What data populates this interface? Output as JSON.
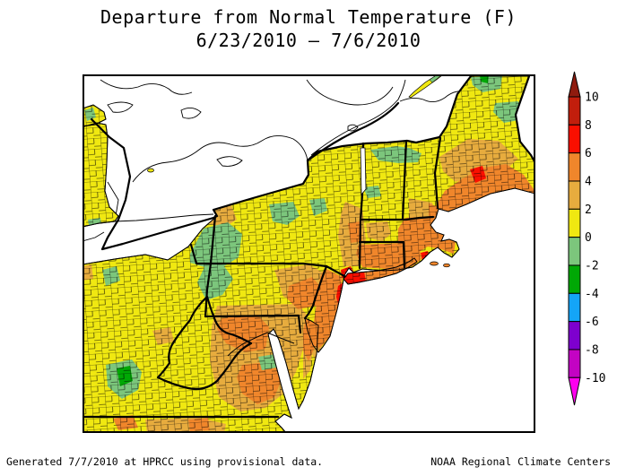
{
  "title": {
    "line1": "Departure from Normal Temperature (F)",
    "line2": "6/23/2010 – 7/6/2010"
  },
  "footer": {
    "left": "Generated 7/7/2010 at HPRCC using provisional data.",
    "right": "NOAA Regional Climate Centers"
  },
  "legend": {
    "labels": [
      "10",
      "8",
      "6",
      "4",
      "2",
      "0",
      "-2",
      "-4",
      "-6",
      "-8",
      "-10"
    ],
    "segment_palette_keys": [
      "8_to_10",
      "6_to_8",
      "4_to_6",
      "2_to_4",
      "0_to_2",
      "neg2_to_0",
      "neg4_to_neg2",
      "neg6_to_neg4",
      "neg8_to_neg6",
      "neg10_to_neg8"
    ],
    "arrow_top_key": "above_10",
    "arrow_bottom_key": "below_neg10"
  },
  "palette": {
    "above_10": "#8F1B0E",
    "8_to_10": "#C21E0C",
    "6_to_8": "#FA0F00",
    "4_to_6": "#F0862B",
    "2_to_4": "#E7AC3E",
    "0_to_2": "#F0E811",
    "neg2_to_0": "#7CC67C",
    "neg4_to_neg2": "#00A805",
    "neg6_to_neg4": "#14A5F7",
    "neg8_to_neg6": "#7E00CE",
    "neg10_to_neg8": "#C303C3",
    "below_neg10": "#FF00EE",
    "outline": "#000000",
    "water": "#FFFFFF"
  }
}
